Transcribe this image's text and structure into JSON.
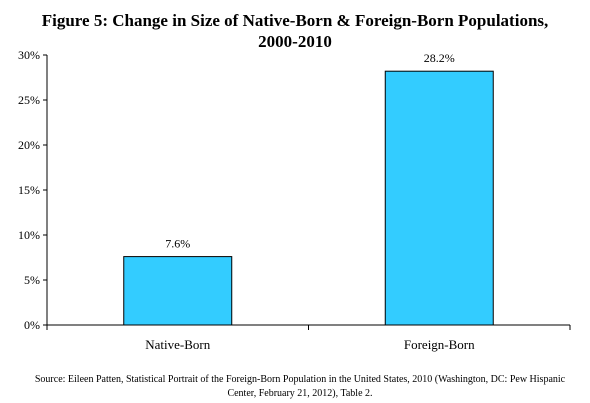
{
  "chart_data": {
    "type": "bar",
    "title_line1": "Figure 5: Change in Size of Native-Born & Foreign-Born Populations,",
    "title_line2": "2000-2010",
    "categories": [
      "Native-Born",
      "Foreign-Born"
    ],
    "values": [
      7.6,
      28.2
    ],
    "data_labels": [
      "7.6%",
      "28.2%"
    ],
    "y_ticks": [
      0,
      5,
      10,
      15,
      20,
      25,
      30
    ],
    "y_tick_labels": [
      "0%",
      "5%",
      "10%",
      "15%",
      "20%",
      "25%",
      "30%"
    ],
    "ylim": [
      0,
      30
    ],
    "xlabel": "",
    "ylabel": "",
    "grid": false,
    "legend": "none",
    "bar_color": "#33CCFF",
    "bar_outline_color": "#000000"
  },
  "source_note": "Source: Eileen Patten, Statistical Portrait of the Foreign-Born Population in the United States, 2010 (Washington, DC: Pew Hispanic Center, February 21, 2012), Table 2."
}
